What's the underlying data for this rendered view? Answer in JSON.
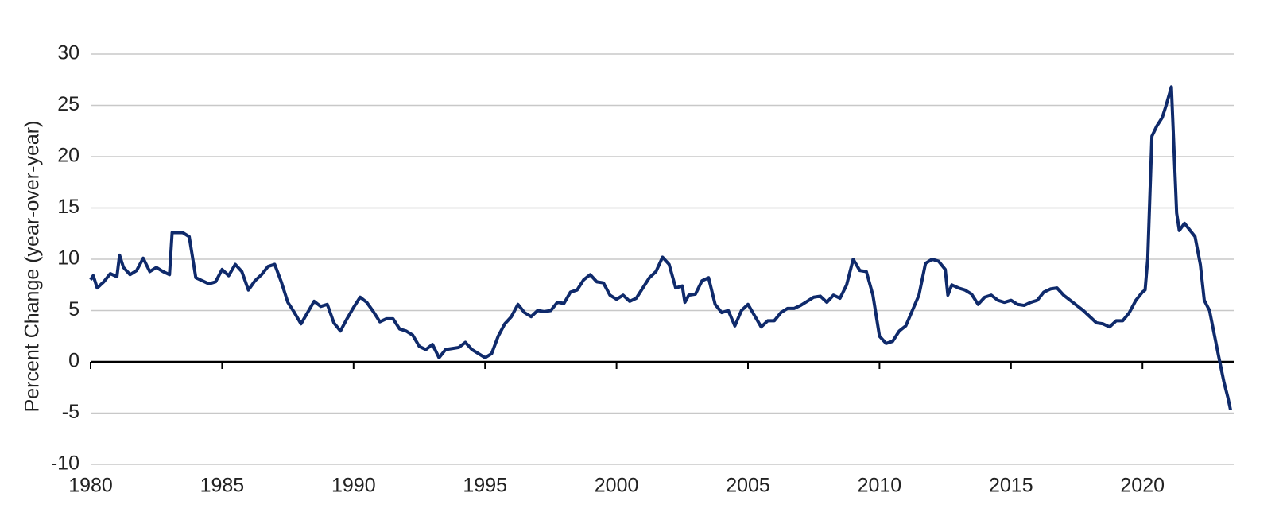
{
  "chart_data": {
    "type": "line",
    "ylabel": "Percent Change (year-over-year)",
    "xlim": [
      1980,
      2023.5
    ],
    "ylim": [
      -10,
      30
    ],
    "xticks": [
      1980,
      1985,
      1990,
      1995,
      2000,
      2005,
      2010,
      2015,
      2020
    ],
    "yticks": [
      -10,
      -5,
      0,
      5,
      10,
      15,
      20,
      25,
      30
    ],
    "grid": true,
    "series": [
      {
        "color": "#0f2a6b",
        "x": [
          1980,
          1980.1,
          1980.25,
          1980.5,
          1980.75,
          1981,
          1981.1,
          1981.25,
          1981.5,
          1981.75,
          1982,
          1982.25,
          1982.5,
          1982.75,
          1983,
          1983.1,
          1983.5,
          1983.75,
          1984,
          1984.25,
          1984.5,
          1984.75,
          1985,
          1985.25,
          1985.5,
          1985.75,
          1986,
          1986.25,
          1986.5,
          1986.75,
          1987,
          1987.25,
          1987.5,
          1987.75,
          1988,
          1988.25,
          1988.5,
          1988.75,
          1989,
          1989.25,
          1989.5,
          1989.75,
          1990,
          1990.25,
          1990.5,
          1990.75,
          1991,
          1991.25,
          1991.5,
          1991.75,
          1992,
          1992.25,
          1992.5,
          1992.75,
          1993,
          1993.25,
          1993.5,
          1993.75,
          1994,
          1994.25,
          1994.5,
          1994.75,
          1995,
          1995.25,
          1995.5,
          1995.75,
          1996,
          1996.25,
          1996.5,
          1996.75,
          1997,
          1997.25,
          1997.5,
          1997.75,
          1998,
          1998.25,
          1998.5,
          1998.75,
          1999,
          1999.25,
          1999.5,
          1999.75,
          2000,
          2000.25,
          2000.5,
          2000.75,
          2001,
          2001.25,
          2001.5,
          2001.75,
          2002,
          2002.25,
          2002.5,
          2002.6,
          2002.75,
          2003,
          2003.25,
          2003.5,
          2003.75,
          2004,
          2004.25,
          2004.5,
          2004.75,
          2005,
          2005.25,
          2005.5,
          2005.75,
          2006,
          2006.25,
          2006.5,
          2006.75,
          2007,
          2007.25,
          2007.5,
          2007.75,
          2008,
          2008.25,
          2008.5,
          2008.75,
          2009,
          2009.25,
          2009.5,
          2009.75,
          2010,
          2010.25,
          2010.5,
          2010.75,
          2011,
          2011.25,
          2011.5,
          2011.75,
          2012,
          2012.25,
          2012.5,
          2012.6,
          2012.75,
          2013,
          2013.25,
          2013.5,
          2013.75,
          2014,
          2014.25,
          2014.5,
          2014.75,
          2015,
          2015.25,
          2015.5,
          2015.75,
          2016,
          2016.25,
          2016.5,
          2016.75,
          2017,
          2017.25,
          2017.5,
          2017.75,
          2018,
          2018.25,
          2018.5,
          2018.75,
          2019,
          2019.25,
          2019.5,
          2019.75,
          2020,
          2020.1,
          2020.2,
          2020.36,
          2020.55,
          2020.75,
          2020.9,
          2021.1,
          2021.3,
          2021.4,
          2021.6,
          2022,
          2022.2,
          2022.35,
          2022.55,
          2022.9,
          2023.1,
          2023.25,
          2023.35
        ],
        "values": [
          8.0,
          8.4,
          7.2,
          7.8,
          8.6,
          8.3,
          10.4,
          9.2,
          8.5,
          8.9,
          10.1,
          8.8,
          9.2,
          8.8,
          8.5,
          12.6,
          12.6,
          12.2,
          8.2,
          7.9,
          7.6,
          7.8,
          9.0,
          8.4,
          9.5,
          8.8,
          7.0,
          7.9,
          8.5,
          9.3,
          9.5,
          7.8,
          5.8,
          4.8,
          3.7,
          4.8,
          5.9,
          5.4,
          5.6,
          3.8,
          3.0,
          4.2,
          5.3,
          6.3,
          5.8,
          4.9,
          3.9,
          4.2,
          4.2,
          3.2,
          3.0,
          2.6,
          1.5,
          1.2,
          1.7,
          0.4,
          1.2,
          1.3,
          1.4,
          1.9,
          1.2,
          0.8,
          0.4,
          0.8,
          2.5,
          3.7,
          4.4,
          5.6,
          4.8,
          4.4,
          5.0,
          4.9,
          5.0,
          5.8,
          5.7,
          6.8,
          7.0,
          8.0,
          8.5,
          7.8,
          7.7,
          6.5,
          6.1,
          6.5,
          5.9,
          6.2,
          7.2,
          8.2,
          8.8,
          10.2,
          9.5,
          7.2,
          7.4,
          5.8,
          6.5,
          6.6,
          7.9,
          8.2,
          5.6,
          4.8,
          5.0,
          3.5,
          5.0,
          5.6,
          4.5,
          3.4,
          4.0,
          4.0,
          4.8,
          5.2,
          5.2,
          5.5,
          5.9,
          6.3,
          6.4,
          5.8,
          6.5,
          6.2,
          7.5,
          10.0,
          8.9,
          8.8,
          6.5,
          2.5,
          1.8,
          2.0,
          3.0,
          3.5,
          5.0,
          6.5,
          9.6,
          10.0,
          9.8,
          9.0,
          6.5,
          7.5,
          7.2,
          7.0,
          6.6,
          5.6,
          6.3,
          6.5,
          6.0,
          5.8,
          6.0,
          5.6,
          5.5,
          5.8,
          6.0,
          6.8,
          7.1,
          7.2,
          6.5,
          6.0,
          5.5,
          5.0,
          4.4,
          3.8,
          3.7,
          3.4,
          4.0,
          4.0,
          4.8,
          6.0,
          6.8,
          7.0,
          10.0,
          22.0,
          23.0,
          23.8,
          25.0,
          26.8,
          14.5,
          12.8,
          13.5,
          12.2,
          9.5,
          6.0,
          5.0,
          0.5,
          -2.0,
          -3.5,
          -4.7
        ]
      }
    ]
  }
}
